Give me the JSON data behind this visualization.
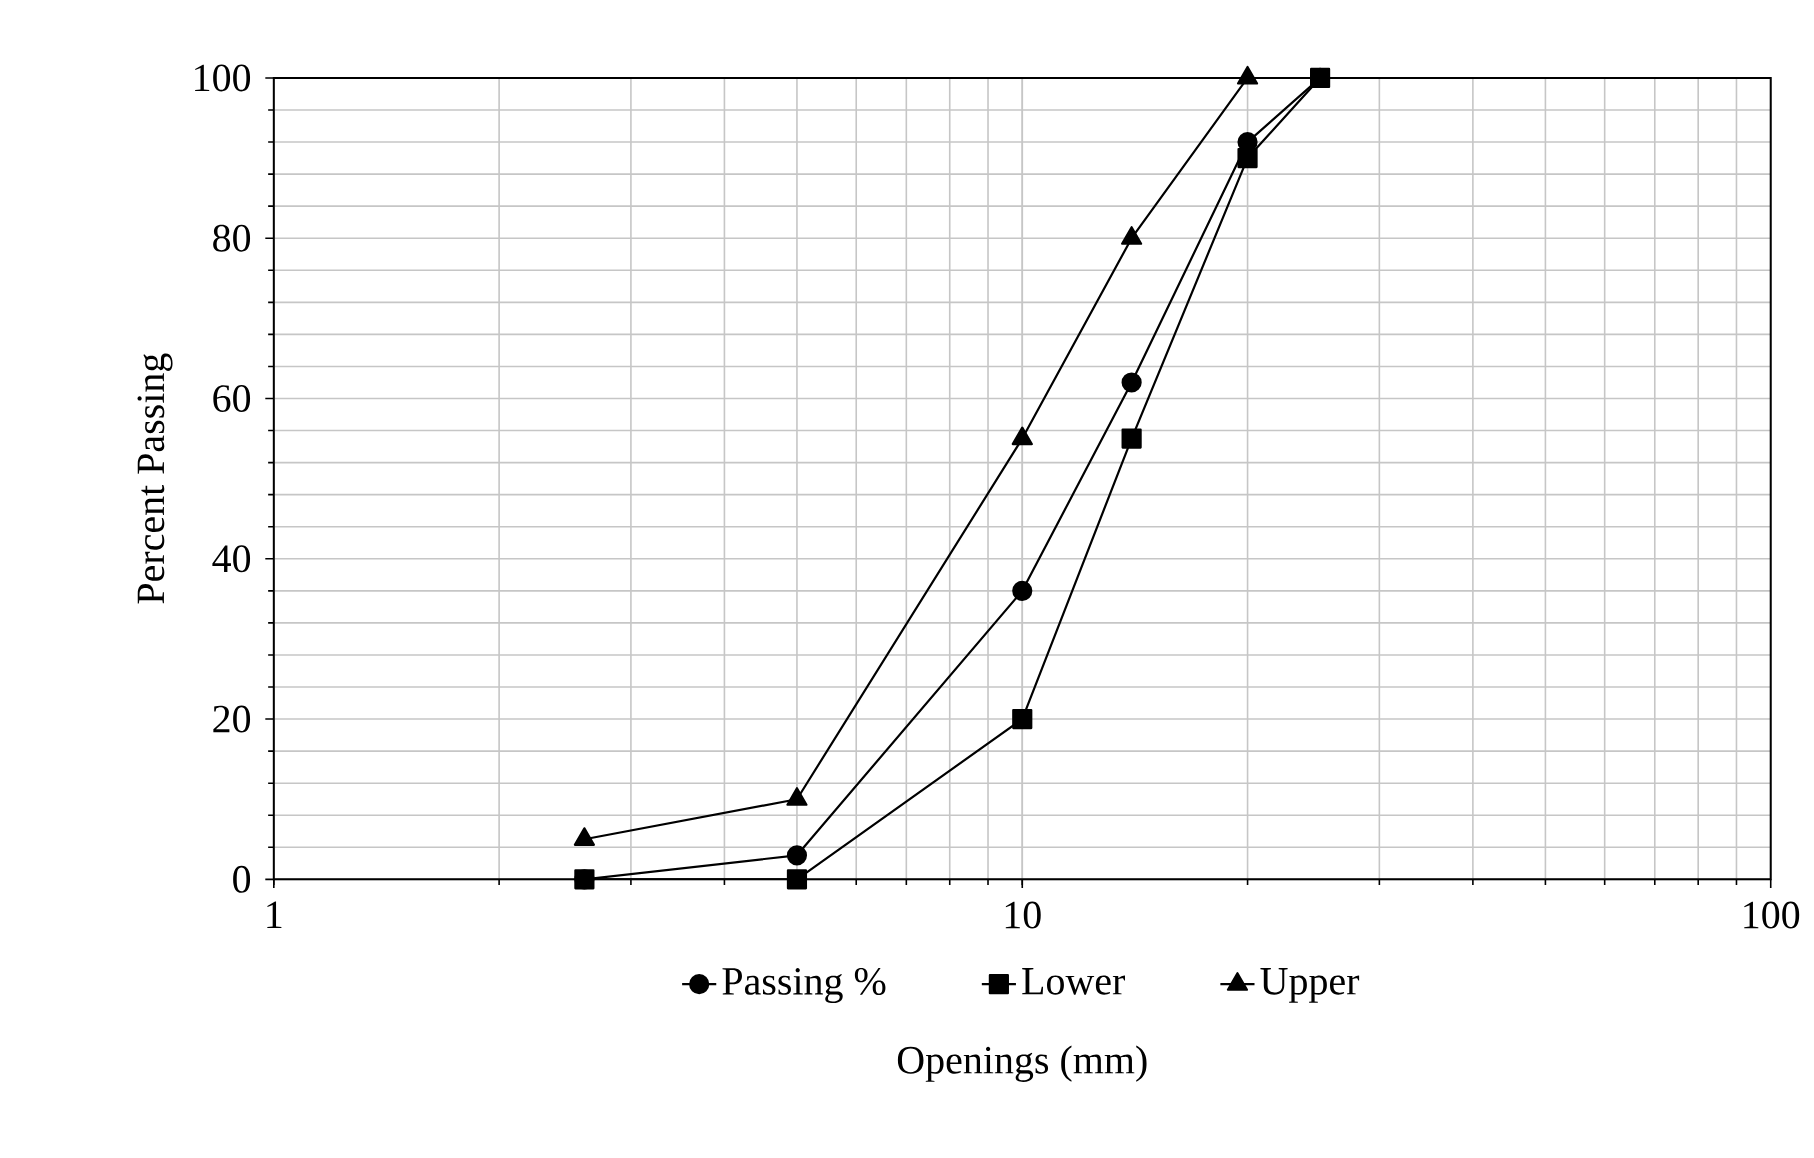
{
  "chart_data": {
    "type": "line",
    "xlabel": "Openings (mm)",
    "ylabel": "Percent Passing",
    "x": [
      2.6,
      5,
      10,
      14,
      20,
      25
    ],
    "series": [
      {
        "name": "Passing %",
        "color": "#000000",
        "marker": "circle",
        "values": [
          0,
          3,
          36,
          62,
          92,
          100
        ]
      },
      {
        "name": "Lower",
        "color": "#000000",
        "marker": "square",
        "values": [
          0,
          0,
          20,
          55,
          90,
          100
        ]
      },
      {
        "name": "Upper",
        "color": "#000000",
        "marker": "triangle",
        "values": [
          5,
          10,
          55,
          80,
          100,
          null
        ]
      }
    ],
    "log": "x",
    "xlim": [
      1,
      100
    ],
    "xticks": [
      1,
      10,
      100
    ],
    "ylim": [
      0,
      100
    ],
    "yticks": [
      0,
      20,
      40,
      60,
      80,
      100
    ],
    "grid": true,
    "legend": "bottom",
    "line_style": "solid"
  }
}
